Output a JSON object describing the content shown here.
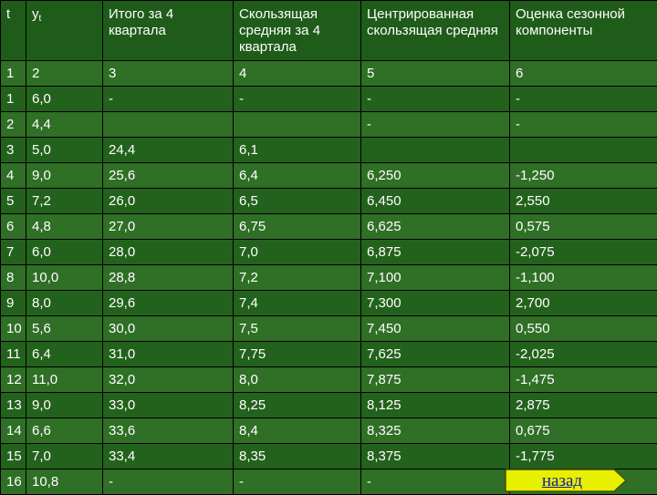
{
  "headers": {
    "t": "t",
    "y_main": "y",
    "y_sub": "t",
    "sum4": "Итого за 4 квартала",
    "moving_avg": "Скользящая средняя за 4 квартала",
    "centered_avg": "Центрированная скользящая средняя",
    "seasonal": "Оценка сезонной компоненты"
  },
  "rows": [
    [
      "1",
      "2",
      "3",
      "4",
      "5",
      "6"
    ],
    [
      "1",
      "6,0",
      "-",
      "-",
      "-",
      "-"
    ],
    [
      "2",
      "4,4",
      "",
      "",
      "-",
      "-"
    ],
    [
      "3",
      "5,0",
      "24,4",
      "6,1",
      "",
      ""
    ],
    [
      "4",
      "9,0",
      "25,6",
      "6,4",
      "6,250",
      "-1,250"
    ],
    [
      "5",
      "7,2",
      "26,0",
      "6,5",
      "6,450",
      "2,550"
    ],
    [
      "6",
      "4,8",
      "27,0",
      "6,75",
      "6,625",
      "0,575"
    ],
    [
      "7",
      "6,0",
      "28,0",
      "7,0",
      "6,875",
      "-2,075"
    ],
    [
      "8",
      "10,0",
      "28,8",
      "7,2",
      "7,100",
      "-1,100"
    ],
    [
      "9",
      "8,0",
      "29,6",
      "7,4",
      "7,300",
      "2,700"
    ],
    [
      "10",
      "5,6",
      "30,0",
      "7,5",
      "7,450",
      "0,550"
    ],
    [
      "11",
      "6,4",
      "31,0",
      "7,75",
      "7,625",
      "-2,025"
    ],
    [
      "12",
      "11,0",
      "32,0",
      "8,0",
      "7,875",
      "-1,475"
    ],
    [
      "13",
      "9,0",
      "33,0",
      "8,25",
      "8,125",
      "2,875"
    ],
    [
      "14",
      "6,6",
      "33,6",
      "8,4",
      "8,325",
      "0,675"
    ],
    [
      "15",
      "7,0",
      "33,4",
      "8,35",
      "8,375",
      "-1,775"
    ],
    [
      "16",
      "10,8",
      "-",
      "-",
      "-",
      ""
    ]
  ],
  "nav": {
    "back_label": "назад",
    "back_fill": "#e6f000"
  },
  "colors": {
    "background": "#1f5c1a",
    "row_odd": "#2f6f26",
    "row_even": "#23621c",
    "text": "#ffffff",
    "link": "#1a1aa8"
  }
}
